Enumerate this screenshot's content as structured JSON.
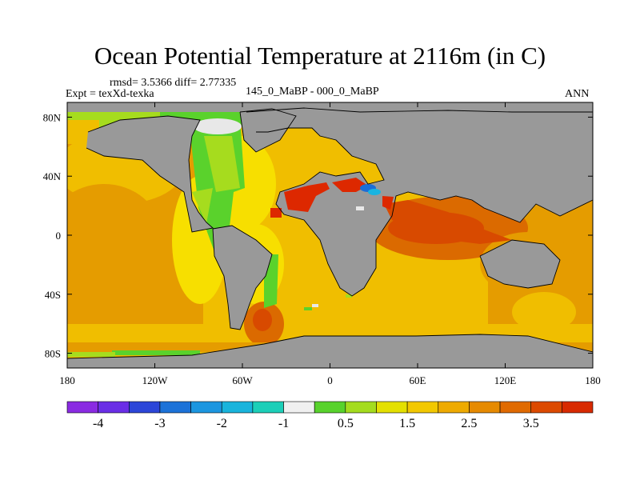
{
  "title": "Ocean Potential Temperature at 2116m (in C)",
  "stats": "rmsd= 3.5366 diff= 2.77335",
  "experiment": "Expt = texXd-texka",
  "comparison": "145_0_MaBP - 000_0_MaBP",
  "season": "ANN",
  "colors": {
    "land": "#999999",
    "c1": "#f7df00",
    "c2": "#f0be00",
    "c3": "#e59c00",
    "c4": "#db6a00",
    "c5": "#d84a00",
    "c6": "#dd2800",
    "green": "#5ad22c",
    "lightgreen": "#a6dc1e",
    "white": "#e8e8e8",
    "blue": "#1a6ed8",
    "cyan": "#19b4e0"
  },
  "map": {
    "lon_range": [
      -180,
      180
    ],
    "lat_range": [
      -90,
      90
    ],
    "lon_ticks": [
      "180",
      "120W",
      "60W",
      "0",
      "60E",
      "120E",
      "180"
    ],
    "lat_ticks": [
      "80N",
      "40N",
      "0",
      "40S",
      "80S"
    ]
  },
  "colorbar": {
    "colors": [
      "#8a2be2",
      "#6a2ee6",
      "#2c46d8",
      "#1c72d8",
      "#1c96e0",
      "#19b4dc",
      "#1ccfb8",
      "#f0f0f0",
      "#58d22c",
      "#a4dc1e",
      "#e4e000",
      "#f2c800",
      "#eeaa00",
      "#e68a00",
      "#e06a00",
      "#dc4a00",
      "#d82a00"
    ],
    "labels": [
      "-4",
      "-3",
      "-2",
      "-1",
      "0.5",
      "1.5",
      "2.5",
      "3.5"
    ]
  }
}
